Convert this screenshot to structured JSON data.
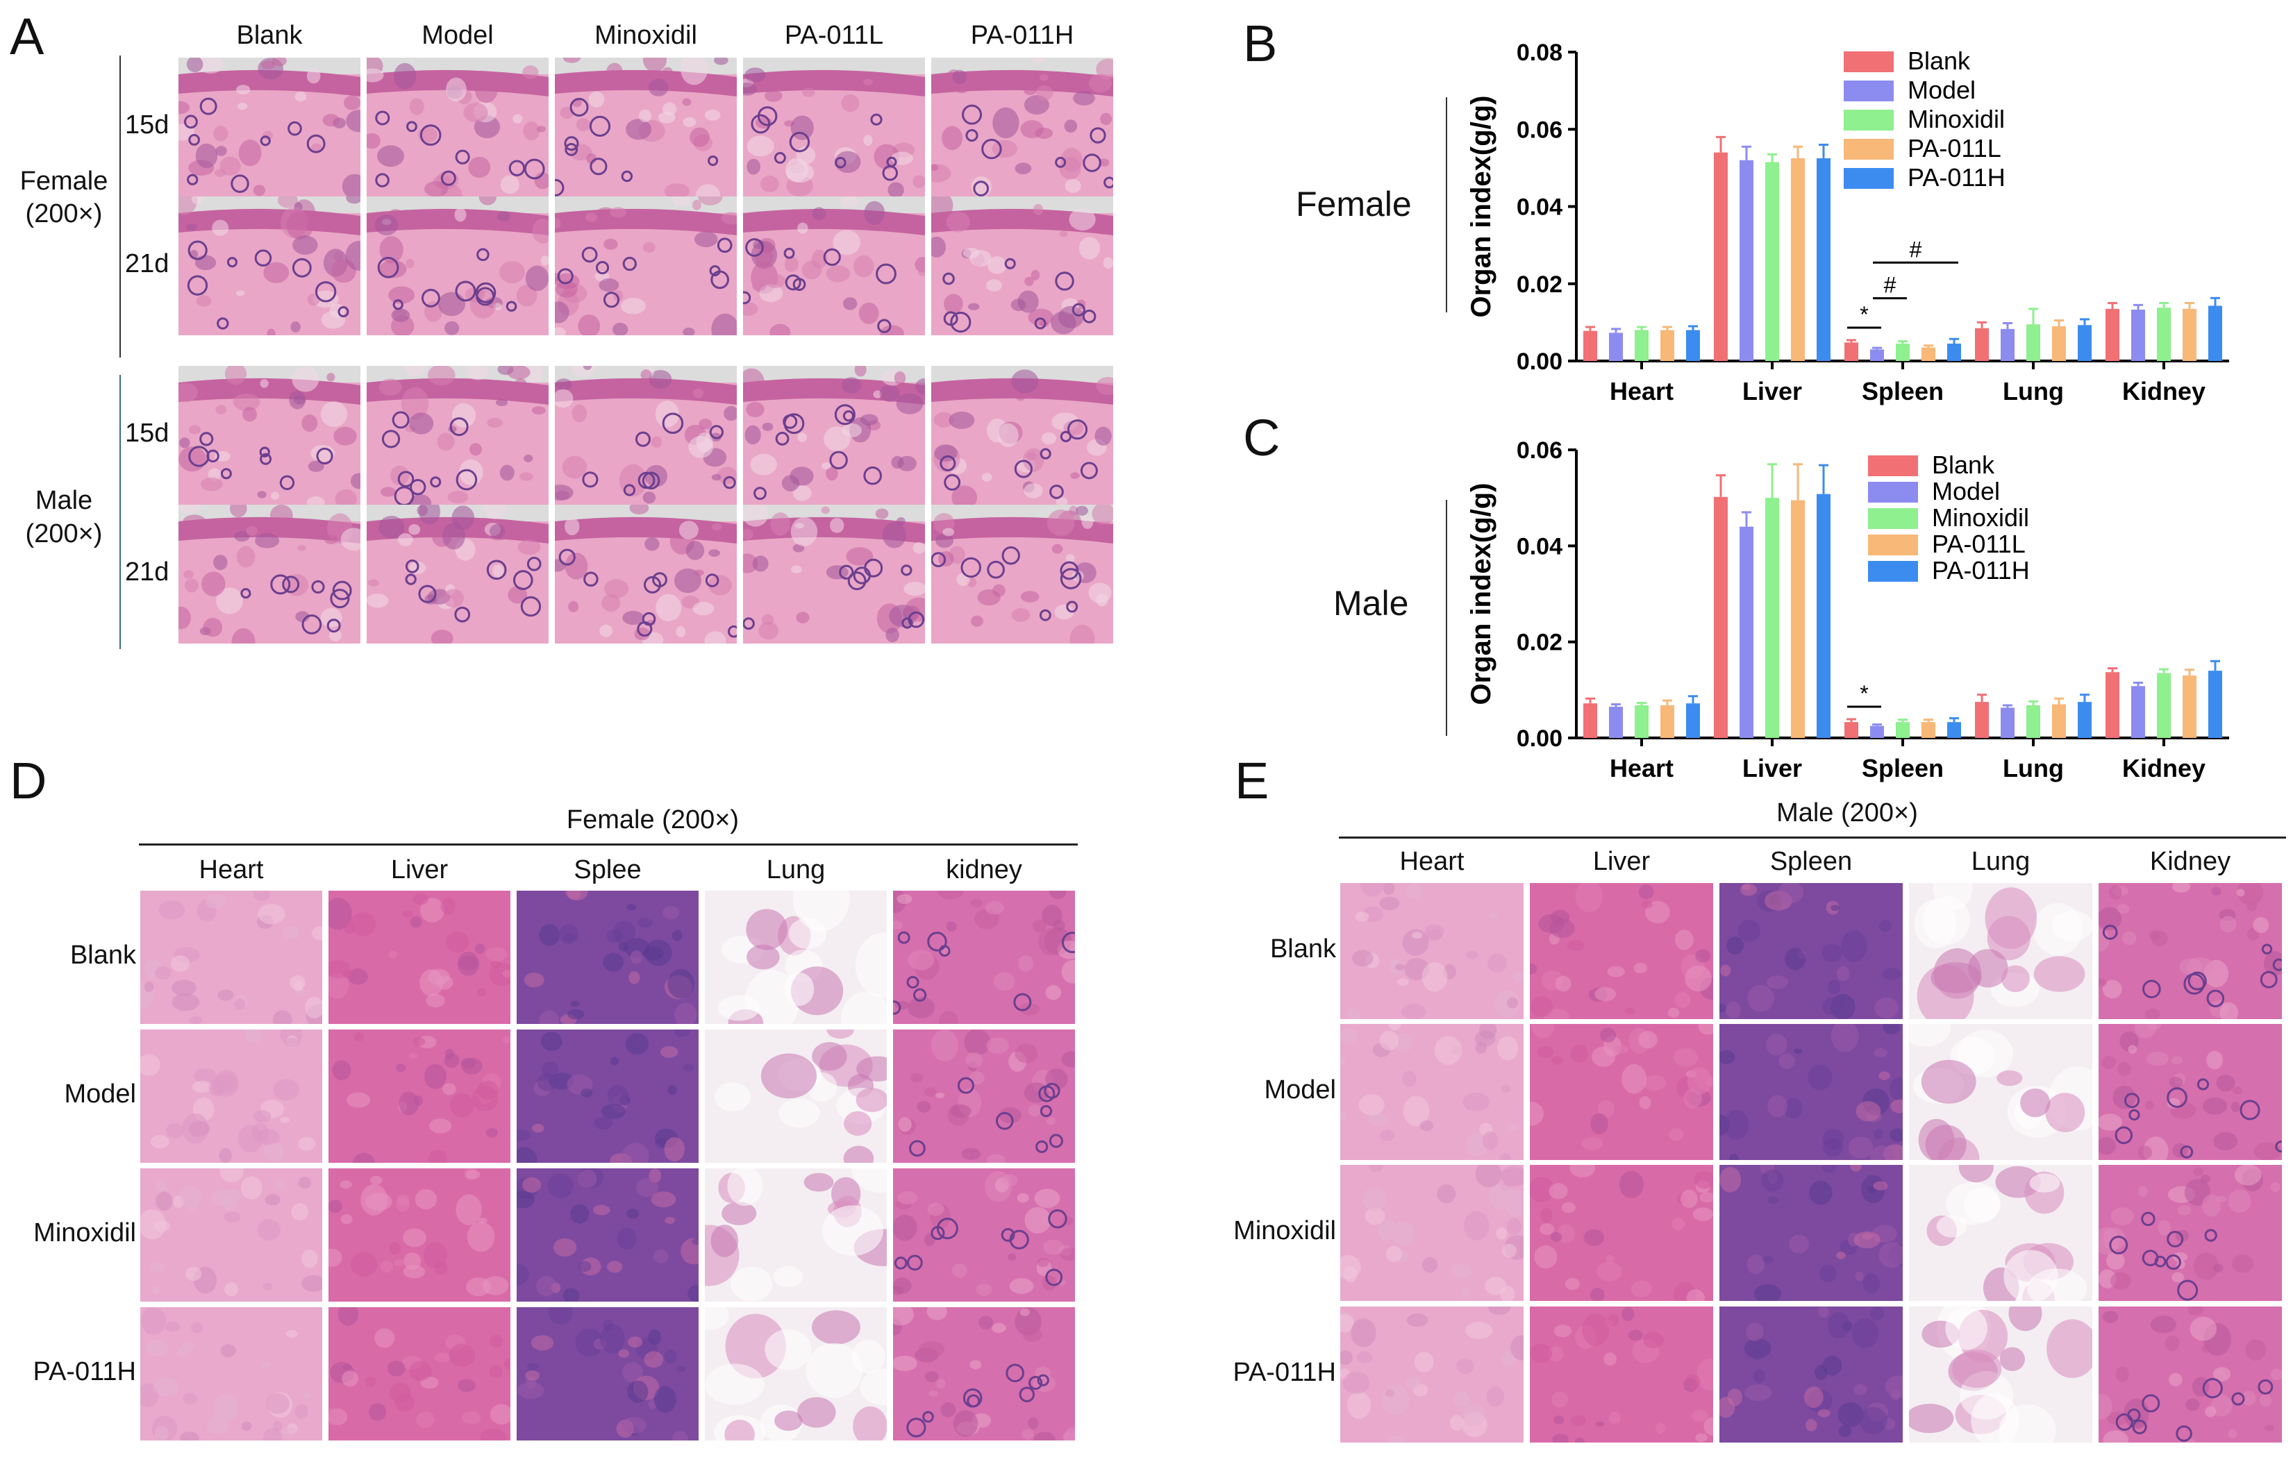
{
  "panels": {
    "A": "A",
    "B": "B",
    "C": "C",
    "D": "D",
    "E": "E"
  },
  "panel_a": {
    "columns": [
      "Blank",
      "Model",
      "Minoxidil",
      "PA-011L",
      "PA-011H"
    ],
    "groups": [
      {
        "label_line1": "Female",
        "label_line2": "(200×)",
        "rows": [
          "15d",
          "21d"
        ]
      },
      {
        "label_line1": "Male",
        "label_line2": "(200×)",
        "rows": [
          "15d",
          "21d"
        ]
      }
    ]
  },
  "panel_d": {
    "title": "Female (200×)",
    "columns": [
      "Heart",
      "Liver",
      "Splee",
      "Lung",
      "kidney"
    ],
    "rows": [
      "Blank",
      "Model",
      "Minoxidil",
      "PA-011H"
    ]
  },
  "panel_e": {
    "title": "Male (200×)",
    "columns": [
      "Heart",
      "Liver",
      "Spleen",
      "Lung",
      "Kidney"
    ],
    "rows": [
      "Blank",
      "Model",
      "Minoxidil",
      "PA-011H"
    ]
  },
  "chart_data": [
    {
      "id": "B",
      "type": "bar",
      "side_label": "Female",
      "ylabel": "Organ index(g/g)",
      "ylim": [
        0,
        0.08
      ],
      "yticks": [
        "0.00",
        "0.02",
        "0.04",
        "0.06",
        "0.08"
      ],
      "ytick_values": [
        0,
        0.02,
        0.04,
        0.06,
        0.08
      ],
      "categories": [
        "Heart",
        "Liver",
        "Spleen",
        "Lung",
        "Kidney"
      ],
      "series": [
        {
          "name": "Blank",
          "color": "#f07074",
          "values": [
            0.0078,
            0.054,
            0.0048,
            0.0085,
            0.0135
          ],
          "errors": [
            0.001,
            0.004,
            0.0006,
            0.0015,
            0.0015
          ]
        },
        {
          "name": "Model",
          "color": "#8c8cf0",
          "values": [
            0.0073,
            0.052,
            0.003,
            0.0083,
            0.0133
          ],
          "errors": [
            0.001,
            0.0035,
            0.0004,
            0.0015,
            0.0012
          ]
        },
        {
          "name": "Minoxidil",
          "color": "#8ef08e",
          "values": [
            0.008,
            0.0515,
            0.0045,
            0.0095,
            0.0138
          ],
          "errors": [
            0.0008,
            0.002,
            0.0006,
            0.004,
            0.0012
          ]
        },
        {
          "name": "PA-011L",
          "color": "#f7b878",
          "values": [
            0.008,
            0.0525,
            0.0035,
            0.009,
            0.0135
          ],
          "errors": [
            0.0008,
            0.003,
            0.0005,
            0.0015,
            0.0015
          ]
        },
        {
          "name": "PA-011H",
          "color": "#3c8cf0",
          "values": [
            0.008,
            0.0525,
            0.0045,
            0.0093,
            0.0143
          ],
          "errors": [
            0.001,
            0.0035,
            0.0012,
            0.0015,
            0.002
          ]
        }
      ],
      "annotations": [
        "*",
        "#",
        "#"
      ],
      "legend_position": "top-right",
      "grid": false
    },
    {
      "id": "C",
      "type": "bar",
      "side_label": "Male",
      "ylabel": "Organ index(g/g)",
      "ylim": [
        0,
        0.06
      ],
      "yticks": [
        "0.00",
        "0.02",
        "0.04",
        "0.06"
      ],
      "ytick_values": [
        0,
        0.02,
        0.04,
        0.06
      ],
      "categories": [
        "Heart",
        "Liver",
        "Spleen",
        "Lung",
        "Kidney"
      ],
      "series": [
        {
          "name": "Blank",
          "color": "#f07074",
          "values": [
            0.0072,
            0.0502,
            0.0033,
            0.0075,
            0.0137
          ],
          "errors": [
            0.001,
            0.0045,
            0.0006,
            0.0015,
            0.0008
          ]
        },
        {
          "name": "Model",
          "color": "#8c8cf0",
          "values": [
            0.0065,
            0.044,
            0.0025,
            0.0063,
            0.0108
          ],
          "errors": [
            0.0005,
            0.003,
            0.0003,
            0.0005,
            0.0007
          ]
        },
        {
          "name": "Minoxidil",
          "color": "#8ef08e",
          "values": [
            0.0068,
            0.05,
            0.0033,
            0.0068,
            0.0135
          ],
          "errors": [
            0.0005,
            0.007,
            0.0005,
            0.0008,
            0.0008
          ]
        },
        {
          "name": "PA-011L",
          "color": "#f7b878",
          "values": [
            0.0068,
            0.0495,
            0.0033,
            0.007,
            0.013
          ],
          "errors": [
            0.001,
            0.0075,
            0.0005,
            0.0012,
            0.0012
          ]
        },
        {
          "name": "PA-011H",
          "color": "#3c8cf0",
          "values": [
            0.0072,
            0.0508,
            0.0033,
            0.0075,
            0.014
          ],
          "errors": [
            0.0015,
            0.006,
            0.0008,
            0.0015,
            0.002
          ]
        }
      ],
      "annotations": [
        "*"
      ],
      "legend_position": "top-right",
      "grid": false
    }
  ]
}
